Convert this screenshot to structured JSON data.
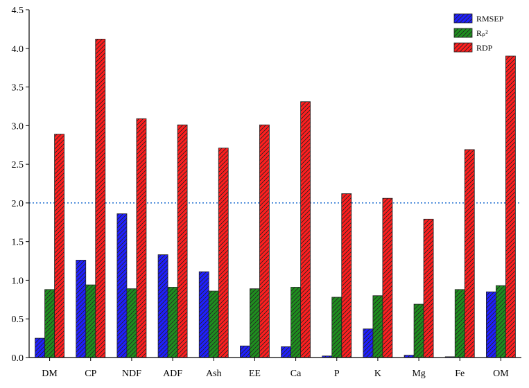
{
  "chart_data": {
    "type": "bar",
    "categories": [
      "DM",
      "CP",
      "NDF",
      "ADF",
      "Ash",
      "EE",
      "Ca",
      "P",
      "K",
      "Mg",
      "Fe",
      "OM"
    ],
    "series": [
      {
        "name": "RMSEP",
        "color": "#1f1fff",
        "values": [
          0.25,
          1.26,
          1.86,
          1.33,
          1.11,
          0.15,
          0.14,
          0.02,
          0.37,
          0.03,
          0.01,
          0.85
        ]
      },
      {
        "name": "Rₚ²",
        "color": "#1f8f1f",
        "values": [
          0.88,
          0.94,
          0.89,
          0.91,
          0.86,
          0.89,
          0.91,
          0.78,
          0.8,
          0.69,
          0.88,
          0.93
        ]
      },
      {
        "name": "RDP",
        "color": "#ff1f1f",
        "values": [
          2.89,
          4.12,
          3.09,
          3.01,
          2.71,
          3.01,
          3.31,
          2.12,
          2.06,
          1.79,
          2.69,
          3.9
        ]
      }
    ],
    "ylim": [
      0,
      4.5
    ],
    "yticks": [
      {
        "value": 0,
        "label": "0.0"
      },
      {
        "value": 0.5,
        "label": "0.5"
      },
      {
        "value": 1,
        "label": "1.0"
      },
      {
        "value": 1.5,
        "label": "1.5"
      },
      {
        "value": 2,
        "label": "2.0"
      },
      {
        "value": 2.5,
        "label": "2.5"
      },
      {
        "value": 3,
        "label": "3.0"
      },
      {
        "value": 3.5,
        "label": "3.5"
      },
      {
        "value": 4,
        "label": "4.0"
      },
      {
        "value": 4.5,
        "label": "4.5"
      }
    ],
    "reference_line": {
      "value": 2,
      "color": "#1f6fd0"
    },
    "hatched": true,
    "legend": "top-right"
  }
}
